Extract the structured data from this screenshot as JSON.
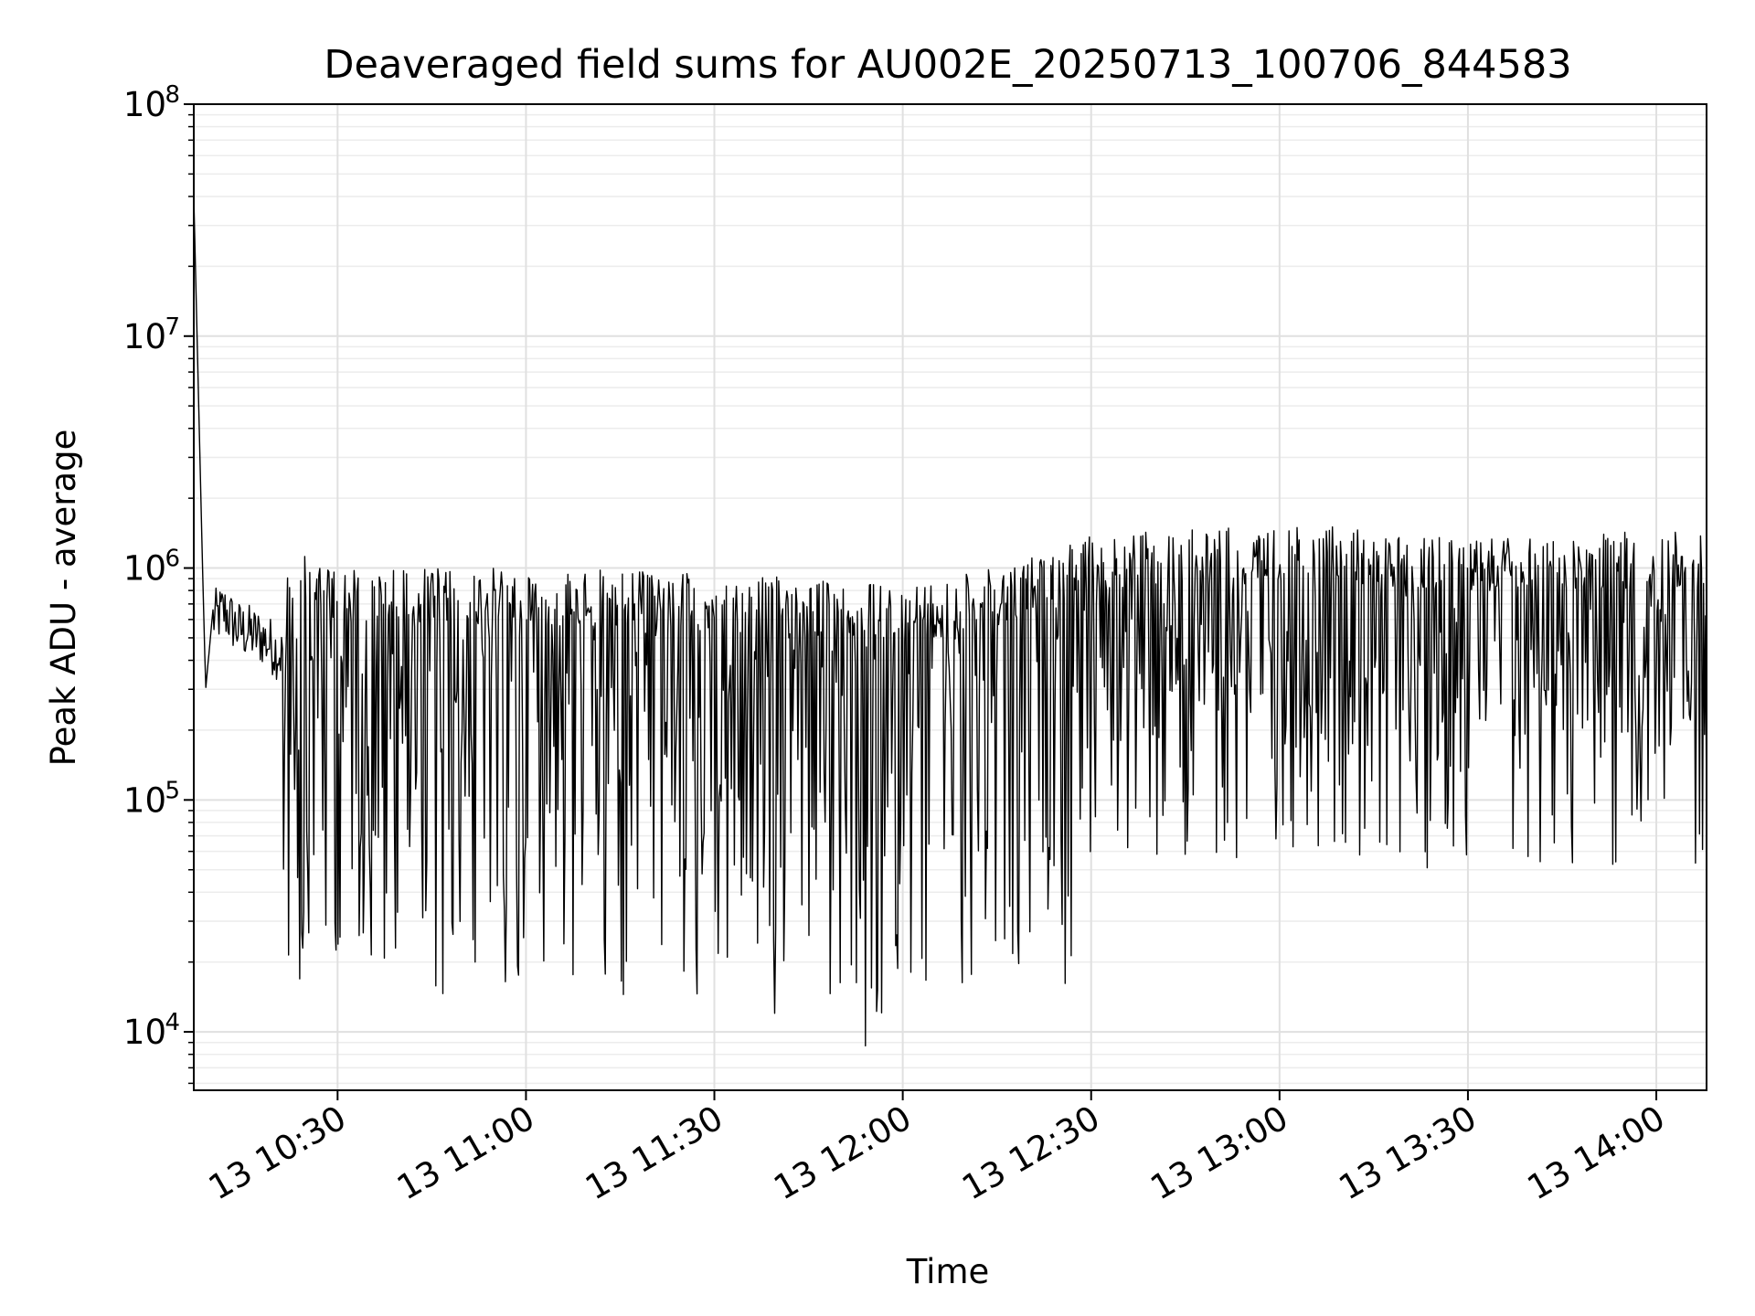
{
  "chart_data": {
    "type": "line",
    "title": "Deaveraged field sums for AU002E_20250713_100706_844583",
    "xlabel": "Time",
    "ylabel": "Peak ADU - average",
    "x_axis": {
      "type": "time",
      "start": "2025-07-13 10:07:06",
      "end": "2025-07-13 14:08:00",
      "ticks": [
        "13 10:30",
        "13 11:00",
        "13 11:30",
        "13 12:00",
        "13 12:30",
        "13 13:00",
        "13 13:30",
        "13 14:00"
      ]
    },
    "y_axis": {
      "scale": "log",
      "ylim": [
        5600,
        100000000
      ],
      "ticks": [
        {
          "value": 10000,
          "base": "10",
          "exp": "4"
        },
        {
          "value": 100000,
          "base": "10",
          "exp": "5"
        },
        {
          "value": 1000000,
          "base": "10",
          "exp": "6"
        },
        {
          "value": 10000000,
          "base": "10",
          "exp": "7"
        },
        {
          "value": 100000000,
          "base": "10",
          "exp": "8"
        }
      ]
    },
    "grid": true,
    "line_color": "#000000",
    "series": [
      {
        "keypoints": [
          {
            "time": "2025-07-13 10:07:06",
            "value": 40000000
          },
          {
            "time": "2025-07-13 10:08:30",
            "value": 1000000
          },
          {
            "time": "2025-07-13 10:09:00",
            "value": 300000
          },
          {
            "time": "2025-07-13 10:10:00",
            "value": 600000
          },
          {
            "time": "2025-07-13 10:12:00",
            "value": 650000
          },
          {
            "time": "2025-07-13 10:14:00",
            "value": 550000
          },
          {
            "time": "2025-07-13 10:18:00",
            "value": 500000
          },
          {
            "time": "2025-07-13 10:22:00",
            "value": 400000
          },
          {
            "time": "2025-07-13 10:26:00",
            "value": 300000
          },
          {
            "time": "2025-07-13 10:35:00",
            "value": 250000
          },
          {
            "time": "2025-07-13 11:00:00",
            "value": 300000
          },
          {
            "time": "2025-07-13 11:30:00",
            "value": 260000
          },
          {
            "time": "2025-07-13 11:50:00",
            "value": 200000
          },
          {
            "time": "2025-07-13 12:05:00",
            "value": 260000
          },
          {
            "time": "2025-07-13 12:20:00",
            "value": 320000
          },
          {
            "time": "2025-07-13 12:30:00",
            "value": 450000
          },
          {
            "time": "2025-07-13 12:45:00",
            "value": 550000
          },
          {
            "time": "2025-07-13 13:00:00",
            "value": 600000
          },
          {
            "time": "2025-07-13 13:30:00",
            "value": 520000
          },
          {
            "time": "2025-07-13 13:50:00",
            "value": 580000
          },
          {
            "time": "2025-07-13 14:08:00",
            "value": 480000
          }
        ],
        "upper_envelope": [
          {
            "time": "2025-07-13 10:14:00",
            "value": 1000000
          },
          {
            "time": "2025-07-13 10:22:00",
            "value": 1200000
          },
          {
            "time": "2025-07-13 10:30:00",
            "value": 1000000
          },
          {
            "time": "2025-07-13 11:00:00",
            "value": 1000000
          },
          {
            "time": "2025-07-13 11:30:00",
            "value": 950000
          },
          {
            "time": "2025-07-13 12:00:00",
            "value": 850000
          },
          {
            "time": "2025-07-13 12:15:00",
            "value": 1000000
          },
          {
            "time": "2025-07-13 12:30:00",
            "value": 1400000
          },
          {
            "time": "2025-07-13 13:00:00",
            "value": 1550000
          },
          {
            "time": "2025-07-13 13:30:00",
            "value": 1400000
          },
          {
            "time": "2025-07-13 14:08:00",
            "value": 1450000
          }
        ],
        "minimum": {
          "time": "2025-07-13 11:54:00",
          "value": 8700
        }
      }
    ]
  }
}
